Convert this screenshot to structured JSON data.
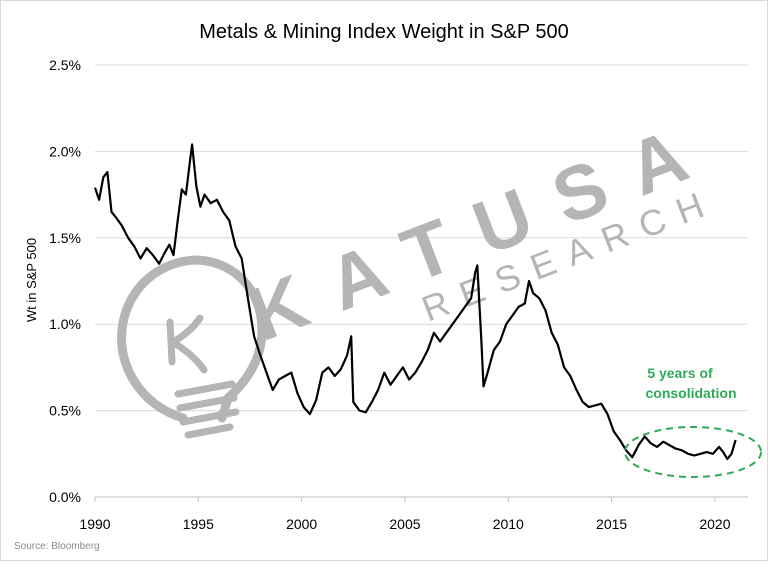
{
  "chart_data": {
    "type": "line",
    "title": "Metals & Mining Index Weight in S&P 500",
    "xlabel": "",
    "ylabel": "Wt in S&P 500",
    "xlim": [
      1990,
      2021.6
    ],
    "ylim": [
      0,
      2.5
    ],
    "x_ticks": [
      1990,
      1995,
      2000,
      2005,
      2010,
      2015,
      2020
    ],
    "x_tick_labels": [
      "1990",
      "1995",
      "2000",
      "2005",
      "2010",
      "2015",
      "2020"
    ],
    "y_ticks": [
      0,
      0.5,
      1.0,
      1.5,
      2.0,
      2.5
    ],
    "y_tick_labels": [
      "0.0%",
      "0.5%",
      "1.0%",
      "1.5%",
      "2.0%",
      "2.5%"
    ],
    "grid": "horizontal",
    "legend": "none",
    "series": [
      {
        "color": "#000000",
        "points": [
          [
            1990.0,
            1.79
          ],
          [
            1990.2,
            1.72
          ],
          [
            1990.4,
            1.85
          ],
          [
            1990.6,
            1.88
          ],
          [
            1990.8,
            1.65
          ],
          [
            1991.0,
            1.62
          ],
          [
            1991.3,
            1.57
          ],
          [
            1991.6,
            1.5
          ],
          [
            1991.9,
            1.45
          ],
          [
            1992.2,
            1.38
          ],
          [
            1992.5,
            1.44
          ],
          [
            1992.8,
            1.4
          ],
          [
            1993.1,
            1.35
          ],
          [
            1993.4,
            1.42
          ],
          [
            1993.6,
            1.46
          ],
          [
            1993.8,
            1.4
          ],
          [
            1994.0,
            1.6
          ],
          [
            1994.2,
            1.78
          ],
          [
            1994.4,
            1.75
          ],
          [
            1994.6,
            1.95
          ],
          [
            1994.7,
            2.04
          ],
          [
            1994.9,
            1.8
          ],
          [
            1995.1,
            1.68
          ],
          [
            1995.3,
            1.75
          ],
          [
            1995.6,
            1.7
          ],
          [
            1995.9,
            1.72
          ],
          [
            1996.2,
            1.65
          ],
          [
            1996.5,
            1.6
          ],
          [
            1996.8,
            1.45
          ],
          [
            1997.1,
            1.38
          ],
          [
            1997.4,
            1.15
          ],
          [
            1997.7,
            0.93
          ],
          [
            1998.0,
            0.82
          ],
          [
            1998.3,
            0.72
          ],
          [
            1998.6,
            0.62
          ],
          [
            1998.9,
            0.68
          ],
          [
            1999.2,
            0.7
          ],
          [
            1999.5,
            0.72
          ],
          [
            1999.8,
            0.6
          ],
          [
            2000.1,
            0.52
          ],
          [
            2000.4,
            0.48
          ],
          [
            2000.7,
            0.56
          ],
          [
            2001.0,
            0.72
          ],
          [
            2001.3,
            0.75
          ],
          [
            2001.6,
            0.7
          ],
          [
            2001.9,
            0.74
          ],
          [
            2002.2,
            0.82
          ],
          [
            2002.4,
            0.93
          ],
          [
            2002.5,
            0.55
          ],
          [
            2002.8,
            0.5
          ],
          [
            2003.1,
            0.49
          ],
          [
            2003.4,
            0.55
          ],
          [
            2003.7,
            0.62
          ],
          [
            2004.0,
            0.72
          ],
          [
            2004.3,
            0.65
          ],
          [
            2004.6,
            0.7
          ],
          [
            2004.9,
            0.75
          ],
          [
            2005.2,
            0.68
          ],
          [
            2005.5,
            0.72
          ],
          [
            2005.8,
            0.78
          ],
          [
            2006.1,
            0.85
          ],
          [
            2006.4,
            0.95
          ],
          [
            2006.7,
            0.9
          ],
          [
            2007.0,
            0.95
          ],
          [
            2007.3,
            1.0
          ],
          [
            2007.6,
            1.05
          ],
          [
            2007.9,
            1.1
          ],
          [
            2008.2,
            1.15
          ],
          [
            2008.4,
            1.3
          ],
          [
            2008.5,
            1.34
          ],
          [
            2008.7,
            0.9
          ],
          [
            2008.8,
            0.64
          ],
          [
            2009.0,
            0.72
          ],
          [
            2009.3,
            0.85
          ],
          [
            2009.6,
            0.9
          ],
          [
            2009.9,
            1.0
          ],
          [
            2010.2,
            1.05
          ],
          [
            2010.5,
            1.1
          ],
          [
            2010.8,
            1.12
          ],
          [
            2011.0,
            1.25
          ],
          [
            2011.2,
            1.18
          ],
          [
            2011.5,
            1.15
          ],
          [
            2011.8,
            1.08
          ],
          [
            2012.1,
            0.95
          ],
          [
            2012.4,
            0.88
          ],
          [
            2012.7,
            0.75
          ],
          [
            2013.0,
            0.7
          ],
          [
            2013.3,
            0.62
          ],
          [
            2013.6,
            0.55
          ],
          [
            2013.9,
            0.52
          ],
          [
            2014.2,
            0.53
          ],
          [
            2014.5,
            0.54
          ],
          [
            2014.8,
            0.48
          ],
          [
            2015.1,
            0.38
          ],
          [
            2015.4,
            0.33
          ],
          [
            2015.7,
            0.27
          ],
          [
            2016.0,
            0.23
          ],
          [
            2016.3,
            0.3
          ],
          [
            2016.6,
            0.35
          ],
          [
            2016.9,
            0.31
          ],
          [
            2017.2,
            0.29
          ],
          [
            2017.5,
            0.32
          ],
          [
            2017.8,
            0.3
          ],
          [
            2018.1,
            0.28
          ],
          [
            2018.4,
            0.27
          ],
          [
            2018.7,
            0.25
          ],
          [
            2019.0,
            0.24
          ],
          [
            2019.3,
            0.25
          ],
          [
            2019.6,
            0.26
          ],
          [
            2019.9,
            0.25
          ],
          [
            2020.2,
            0.29
          ],
          [
            2020.4,
            0.26
          ],
          [
            2020.6,
            0.22
          ],
          [
            2020.8,
            0.25
          ],
          [
            2021.0,
            0.33
          ]
        ]
      }
    ],
    "annotation": {
      "line1": "5 years of",
      "line2": "consolidation",
      "color": "#2eaa5a"
    }
  },
  "watermark": {
    "brand": "KATUSA",
    "sub": "RESEARCH",
    "color": "#b5b5b5"
  },
  "source": "Source: Bloomberg"
}
